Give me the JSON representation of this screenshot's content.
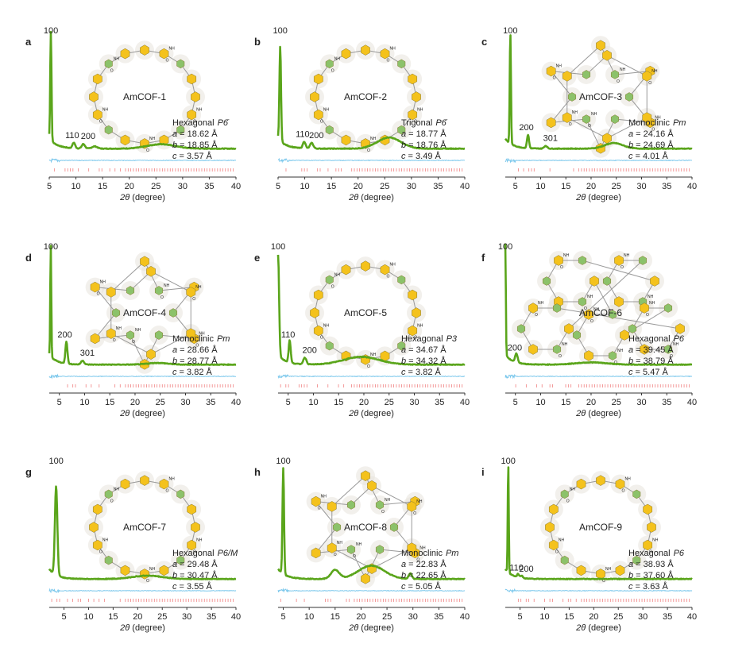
{
  "colors": {
    "observed": "#5aa51b",
    "difference": "#7cc8ec",
    "bragg": "#f08080",
    "axis": "#333333",
    "benzene": "#f4c21c",
    "phenylene": "#8cc26a",
    "nitrogen": "#2b3fd6",
    "oxygen": "#e02020",
    "halo": "#e8e4dc"
  },
  "xlabel_symbol": "2θ",
  "xlabel_unit": "(degree)",
  "chart_data": [
    {
      "type": "line",
      "panel": "a",
      "framework": "AmCOF-1",
      "symmetry": "Hexagonal",
      "space_group": "P6̄",
      "cell": {
        "a": "18.62 Å",
        "b": "18.85 Å",
        "c": "3.57 Å"
      },
      "xlim": [
        5,
        40
      ],
      "xticks": [
        5,
        10,
        15,
        20,
        25,
        30,
        35,
        40
      ],
      "peak_labels": [
        {
          "text": "100",
          "x": 5.3
        },
        {
          "text": "110",
          "x": 9.6
        },
        {
          "text": "200",
          "x": 11.4
        }
      ],
      "peaks": [
        [
          5.3,
          0.98,
          0.12
        ],
        [
          9.6,
          0.05,
          0.25
        ],
        [
          11.4,
          0.04,
          0.3
        ],
        [
          13.5,
          0.02,
          0.5
        ],
        [
          26.0,
          0.04,
          2.6
        ]
      ],
      "pattern": "p6",
      "struct_type": "ring"
    },
    {
      "type": "line",
      "panel": "b",
      "framework": "AmCOF-2",
      "symmetry": "Trigonal",
      "space_group": "P6̄",
      "cell": {
        "a": "18.77 Å",
        "b": "18.76 Å",
        "c": "3.49 Å"
      },
      "xlim": [
        5,
        40
      ],
      "xticks": [
        5,
        10,
        15,
        20,
        25,
        30,
        35,
        40
      ],
      "peak_labels": [
        {
          "text": "100",
          "x": 5.4
        },
        {
          "text": "110",
          "x": 9.9
        },
        {
          "text": "200",
          "x": 11.3
        }
      ],
      "peaks": [
        [
          5.4,
          0.85,
          0.15
        ],
        [
          9.9,
          0.06,
          0.25
        ],
        [
          11.3,
          0.05,
          0.3
        ],
        [
          25.8,
          0.1,
          2.2
        ]
      ],
      "pattern": "p6",
      "struct_type": "ring"
    },
    {
      "type": "line",
      "panel": "c",
      "framework": "AmCOF-3",
      "symmetry": "Monoclinic",
      "space_group": "Pm",
      "cell": {
        "a": "24.16 Å",
        "b": "24.69 Å",
        "c": "4.01 Å"
      },
      "xlim": [
        3,
        40
      ],
      "xticks": [
        5,
        10,
        15,
        20,
        25,
        30,
        35,
        40
      ],
      "peak_labels": [
        {
          "text": "100",
          "x": 4.0
        },
        {
          "text": "200",
          "x": 7.5
        },
        {
          "text": "301",
          "x": 11.0
        }
      ],
      "peaks": [
        [
          4.0,
          1.0,
          0.12
        ],
        [
          7.5,
          0.12,
          0.2
        ],
        [
          11.0,
          0.025,
          0.3
        ],
        [
          24.5,
          0.05,
          1.8
        ]
      ],
      "pattern": "pm",
      "struct_type": "star"
    },
    {
      "type": "line",
      "panel": "d",
      "framework": "AmCOF-4",
      "symmetry": "Monoclinic",
      "space_group": "Pm",
      "cell": {
        "a": "28.66 Å",
        "b": "28.77 Å",
        "c": "3.82 Å"
      },
      "xlim": [
        3,
        40
      ],
      "xticks": [
        5,
        10,
        15,
        20,
        25,
        30,
        35,
        40
      ],
      "peak_labels": [
        {
          "text": "100",
          "x": 3.3
        },
        {
          "text": "200",
          "x": 6.4
        },
        {
          "text": "301",
          "x": 9.6
        }
      ],
      "peaks": [
        [
          3.3,
          1.0,
          0.1
        ],
        [
          6.4,
          0.2,
          0.2
        ],
        [
          9.6,
          0.035,
          0.3
        ],
        [
          24.5,
          0.015,
          2.0
        ]
      ],
      "pattern": "pm",
      "struct_type": "star"
    },
    {
      "type": "line",
      "panel": "e",
      "framework": "AmCOF-5",
      "symmetry": "Hexagonal",
      "space_group": "P3",
      "cell": {
        "a": "34.67 Å",
        "b": "34.32 Å",
        "c": "3.82 Å"
      },
      "xlim": [
        3,
        40
      ],
      "xticks": [
        5,
        10,
        15,
        20,
        25,
        30,
        35,
        40
      ],
      "peak_labels": [
        {
          "text": "100",
          "x": 3.0
        },
        {
          "text": "110",
          "x": 5.3
        },
        {
          "text": "200",
          "x": 8.3
        }
      ],
      "peaks": [
        [
          3.0,
          0.9,
          0.2
        ],
        [
          5.3,
          0.2,
          0.2
        ],
        [
          8.3,
          0.06,
          0.3
        ],
        [
          19.5,
          0.07,
          3.5
        ]
      ],
      "pattern": "p3",
      "struct_type": "ring"
    },
    {
      "type": "line",
      "panel": "f",
      "framework": "AmCOF-6",
      "symmetry": "Hexagonal",
      "space_group": "P6",
      "cell": {
        "a": "39.45 Å",
        "b": "38.79 Å",
        "c": "5.47 Å"
      },
      "xlim": [
        3,
        40
      ],
      "xticks": [
        5,
        10,
        15,
        20,
        25,
        30,
        35,
        40
      ],
      "peak_labels": [
        {
          "text": "100",
          "x": 3.0
        },
        {
          "text": "200",
          "x": 5.2
        }
      ],
      "peaks": [
        [
          3.0,
          1.0,
          0.1
        ],
        [
          5.2,
          0.08,
          0.25
        ],
        [
          20.0,
          0.02,
          3.0
        ]
      ],
      "pattern": "p6",
      "struct_type": "mesh"
    },
    {
      "type": "line",
      "panel": "g",
      "framework": "AmCOF-7",
      "symmetry": "Hexagonal",
      "space_group": "P6/M",
      "cell": {
        "a": "29.48 Å",
        "b": "30.47 Å",
        "c": "3.55 Å"
      },
      "xlim": [
        2,
        40
      ],
      "xticks": [
        5,
        10,
        15,
        20,
        25,
        30,
        35,
        40
      ],
      "peak_labels": [
        {
          "text": "100",
          "x": 3.4
        }
      ],
      "peaks": [
        [
          3.4,
          0.8,
          0.25
        ],
        [
          22.0,
          0.03,
          3.0
        ]
      ],
      "pattern": "p6",
      "struct_type": "ring"
    },
    {
      "type": "line",
      "panel": "h",
      "framework": "AmCOF-8",
      "symmetry": "Monoclinic",
      "space_group": "Pm",
      "cell": {
        "a": "22.83 Å",
        "b": "22.65 Å",
        "c": "5.05 Å"
      },
      "xlim": [
        4,
        40
      ],
      "xticks": [
        5,
        10,
        15,
        20,
        25,
        30,
        35,
        40
      ],
      "peak_labels": [
        {
          "text": "100",
          "x": 5.0
        }
      ],
      "peaks": [
        [
          5.0,
          0.95,
          0.15
        ],
        [
          15.0,
          0.08,
          0.8
        ],
        [
          22.0,
          0.12,
          2.5
        ],
        [
          29.5,
          0.05,
          0.3
        ]
      ],
      "pattern": "pm",
      "struct_type": "star"
    },
    {
      "type": "line",
      "panel": "i",
      "framework": "AmCOF-9",
      "symmetry": "Hexagonal",
      "space_group": "P6",
      "cell": {
        "a": "38.93 Å",
        "b": "37.60 Å",
        "c": "3.63 Å"
      },
      "xlim": [
        2,
        40
      ],
      "xticks": [
        5,
        10,
        15,
        20,
        25,
        30,
        35,
        40
      ],
      "peak_labels": [
        {
          "text": "100",
          "x": 2.6
        },
        {
          "text": "110",
          "x": 4.6
        },
        {
          "text": "200",
          "x": 5.3
        }
      ],
      "peaks": [
        [
          2.6,
          1.0,
          0.1
        ],
        [
          4.6,
          0.03,
          0.2
        ],
        [
          5.3,
          0.02,
          0.25
        ]
      ],
      "pattern": "p6",
      "struct_type": "ring"
    }
  ]
}
